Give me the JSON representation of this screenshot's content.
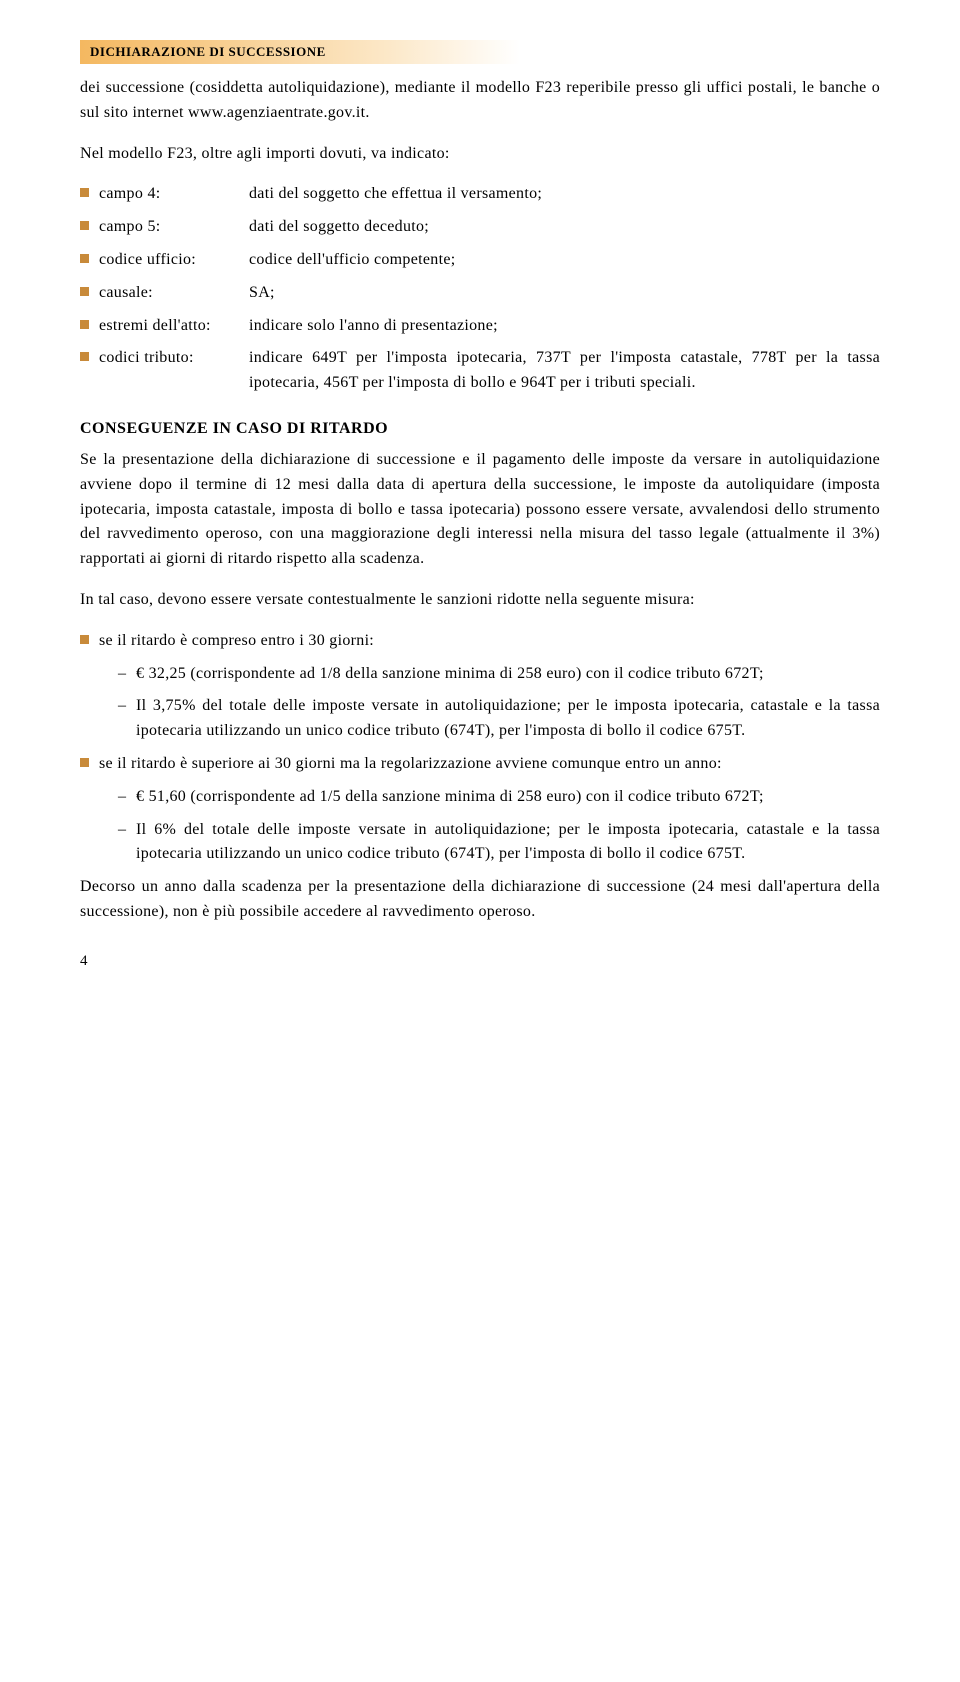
{
  "header": "DICHIARAZIONE DI SUCCESSIONE",
  "intro": "dei successione (cosiddetta autoliquidazione), mediante il modello F23 reperibile presso gli uffici postali, le banche o sul sito internet www.agenziaentrate.gov.it.",
  "f23_intro": "Nel modello F23, oltre agli importi dovuti, va indicato:",
  "fields": [
    {
      "label": "campo 4:",
      "value": "dati del soggetto che effettua il versamento;"
    },
    {
      "label": "campo 5:",
      "value": "dati del soggetto deceduto;"
    },
    {
      "label": "codice ufficio:",
      "value": "codice dell'ufficio competente;"
    },
    {
      "label": "causale:",
      "value": "SA;"
    },
    {
      "label": "estremi dell'atto:",
      "value": "indicare solo l'anno di presentazione;"
    },
    {
      "label": "codici tributo:",
      "value": "indicare 649T per l'imposta ipotecaria, 737T per l'imposta catastale, 778T per la tassa ipotecaria, 456T per l'imposta di bollo e 964T per i tributi speciali."
    }
  ],
  "section_title": "CONSEGUENZE IN CASO DI RITARDO",
  "para1": "Se la presentazione della dichiarazione di successione e il pagamento delle imposte da versare in autoliquidazione avviene dopo il termine di 12 mesi dalla data di apertura della successione, le imposte da autoliquidare (imposta ipotecaria, imposta catastale, imposta di bollo e tassa ipotecaria) possono essere versate, avvalendosi dello strumento del ravvedimento operoso, con una maggiorazione degli interessi nella misura del tasso legale (attualmente il 3%) rapportati ai giorni di ritardo rispetto alla scadenza.",
  "para2": "In tal caso, devono essere versate contestualmente le sanzioni ridotte nella seguente misura:",
  "bullet1": "se il ritardo è compreso entro i 30 giorni:",
  "dash1a": "€ 32,25 (corrispondente ad 1/8 della sanzione minima di 258 euro) con il codice tributo 672T;",
  "dash1b": "Il 3,75% del totale delle imposte versate in autoliquidazione; per le imposta ipotecaria, catastale e la tassa ipotecaria utilizzando un unico codice tributo (674T), per l'imposta di bollo il codice 675T.",
  "bullet2": "se il ritardo è superiore ai 30 giorni ma la regolarizzazione avviene comunque entro un anno:",
  "dash2a": "€ 51,60 (corrispondente ad 1/5 della sanzione minima di 258 euro) con il codice tributo 672T;",
  "dash2b": "Il 6% del totale delle imposte versate in autoliquidazione; per le imposta ipotecaria, catastale e la tassa ipotecaria utilizzando un unico codice tributo (674T), per l'imposta di bollo il codice 675T.",
  "para3": "Decorso un anno dalla scadenza per la presentazione della dichiarazione di successione (24 mesi dall'apertura della successione), non è più possibile accedere al ravvedimento operoso.",
  "page_number": "4"
}
